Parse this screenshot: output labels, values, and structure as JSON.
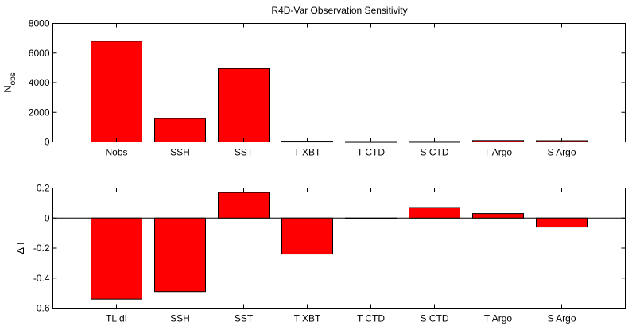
{
  "chart_data": [
    {
      "type": "bar",
      "title": "R4D-Var Observation Sensitivity",
      "ylabel": "N",
      "ylabel_sub": "obs",
      "xlabel": "",
      "categories": [
        "Nobs",
        "SSH",
        "SST",
        "T XBT",
        "T CTD",
        "S CTD",
        "T Argo",
        "S Argo"
      ],
      "values": [
        6800,
        1580,
        4950,
        50,
        25,
        30,
        90,
        80
      ],
      "ylim": [
        0,
        8000
      ],
      "yticks": [
        0,
        2000,
        4000,
        6000,
        8000
      ],
      "bar_color": "#ff0000",
      "grid": false
    },
    {
      "type": "bar",
      "title": "",
      "ylabel": "Δ I",
      "xlabel": "",
      "categories": [
        "TL dI",
        "SSH",
        "SST",
        "T XBT",
        "T CTD",
        "S CTD",
        "T Argo",
        "S Argo"
      ],
      "values": [
        -0.54,
        -0.49,
        0.17,
        -0.24,
        -0.005,
        0.07,
        0.03,
        -0.06
      ],
      "ylim": [
        -0.6,
        0.2
      ],
      "yticks": [
        -0.6,
        -0.4,
        -0.2,
        0,
        0.2
      ],
      "bar_color": "#ff0000",
      "grid": false,
      "zero_line": true
    }
  ]
}
